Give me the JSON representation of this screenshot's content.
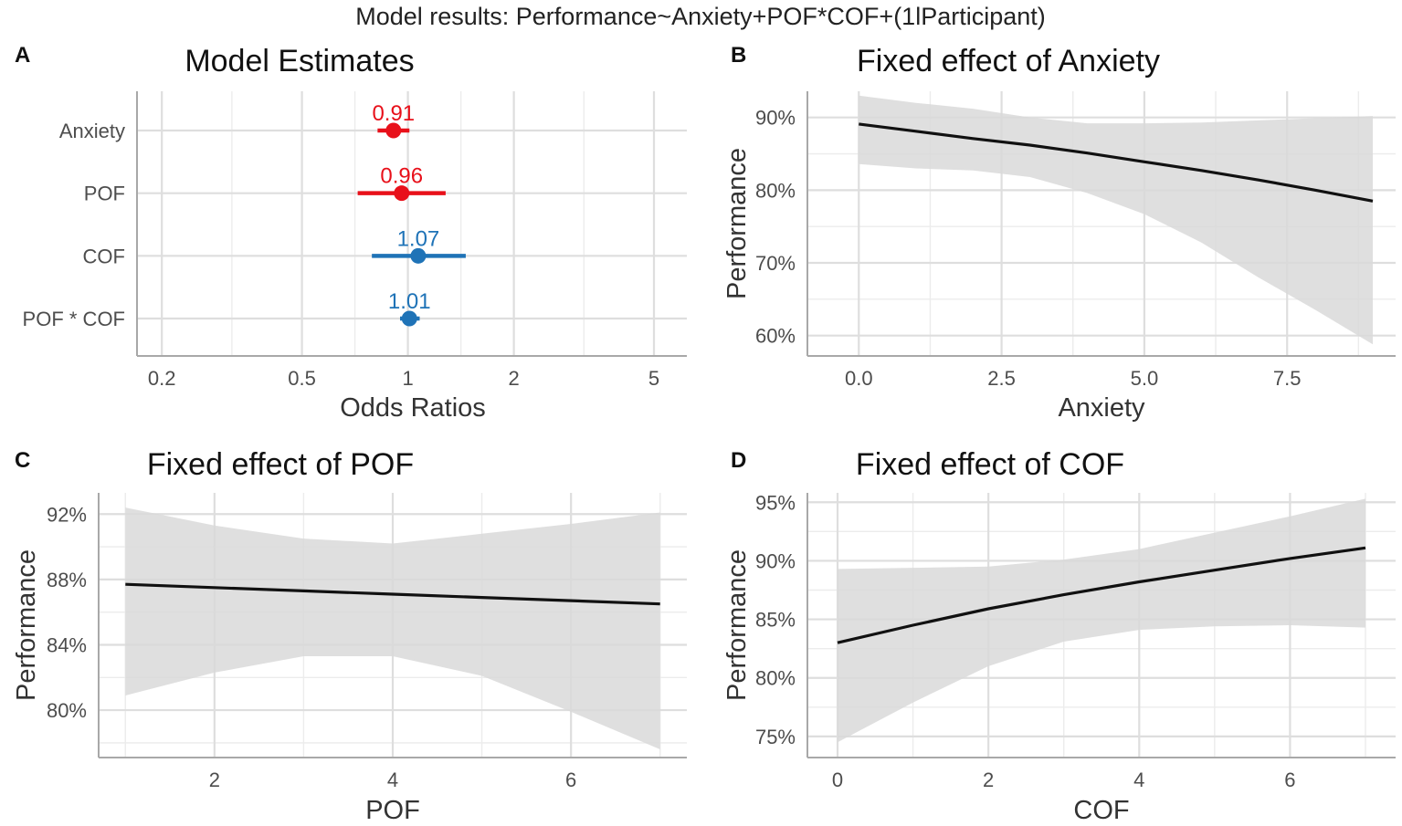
{
  "figure_title": "Model results: Performance~Anxiety+POF*COF+(1lParticipant)",
  "colors": {
    "negative": "#e8101a",
    "positive": "#1f73b7",
    "line": "#111111",
    "ribbon": "#d9d9d9"
  },
  "chart_data": [
    {
      "id": "A",
      "type": "forest",
      "panel_label": "A",
      "title": "Model Estimates",
      "xlabel": "Odds Ratios",
      "x_scale": "log",
      "xlim": [
        0.17,
        6.2
      ],
      "x_ticks": [
        0.2,
        0.5,
        1,
        2,
        5
      ],
      "x_tick_labels": [
        "0.2",
        "0.5",
        "1",
        "2",
        "5"
      ],
      "terms": [
        {
          "name": "Anxiety",
          "estimate": 0.91,
          "label": "0.91",
          "ci": [
            0.82,
            1.01
          ],
          "color": "negative"
        },
        {
          "name": "POF",
          "estimate": 0.96,
          "label": "0.96",
          "ci": [
            0.72,
            1.28
          ],
          "color": "negative"
        },
        {
          "name": "COF",
          "estimate": 1.07,
          "label": "1.07",
          "ci": [
            0.79,
            1.46
          ],
          "color": "positive"
        },
        {
          "name": "POF * COF",
          "estimate": 1.01,
          "label": "1.01",
          "ci": [
            0.95,
            1.08
          ],
          "color": "positive"
        }
      ]
    },
    {
      "id": "B",
      "type": "line",
      "panel_label": "B",
      "title": "Fixed effect of Anxiety",
      "xlabel": "Anxiety",
      "ylabel": "Performance",
      "xlim": [
        -0.9,
        9.4
      ],
      "ylim": [
        57.2,
        93.6
      ],
      "x_ticks": [
        0,
        2.5,
        5,
        7.5
      ],
      "x_tick_labels": [
        "0.0",
        "2.5",
        "5.0",
        "7.5"
      ],
      "y_ticks": [
        60,
        70,
        80,
        90
      ],
      "y_tick_labels": [
        "60%",
        "70%",
        "80%",
        "90%"
      ],
      "x": [
        0,
        1,
        2,
        3,
        4,
        5,
        6,
        7,
        8,
        9
      ],
      "y": [
        89.1,
        88.1,
        87.1,
        86.2,
        85.1,
        83.9,
        82.7,
        81.4,
        80.0,
        78.5
      ],
      "lower": [
        83.6,
        83.0,
        82.7,
        81.8,
        79.6,
        76.7,
        72.8,
        68.0,
        63.5,
        58.8
      ],
      "upper": [
        93.0,
        92.0,
        91.2,
        90.0,
        89.2,
        89.2,
        89.3,
        89.6,
        89.9,
        90.2
      ]
    },
    {
      "id": "C",
      "type": "line",
      "panel_label": "C",
      "title": "Fixed effect of POF",
      "xlabel": "POF",
      "ylabel": "Performance",
      "xlim": [
        0.7,
        7.3
      ],
      "ylim": [
        77.1,
        93.3
      ],
      "x_ticks": [
        2,
        4,
        6
      ],
      "x_tick_labels": [
        "2",
        "4",
        "6"
      ],
      "y_ticks": [
        80,
        84,
        88,
        92
      ],
      "y_tick_labels": [
        "80%",
        "84%",
        "88%",
        "92%"
      ],
      "x": [
        1,
        2,
        3,
        4,
        5,
        6,
        7
      ],
      "y": [
        87.7,
        87.5,
        87.3,
        87.1,
        86.9,
        86.7,
        86.5
      ],
      "lower": [
        80.9,
        82.3,
        83.3,
        83.3,
        82.1,
        79.9,
        77.6
      ],
      "upper": [
        92.4,
        91.3,
        90.5,
        90.2,
        90.8,
        91.4,
        92.1
      ]
    },
    {
      "id": "D",
      "type": "line",
      "panel_label": "D",
      "title": "Fixed effect of COF",
      "xlabel": "COF",
      "ylabel": "Performance",
      "xlim": [
        -0.4,
        7.4
      ],
      "ylim": [
        73.2,
        95.8
      ],
      "x_ticks": [
        0,
        2,
        4,
        6
      ],
      "x_tick_labels": [
        "0",
        "2",
        "4",
        "6"
      ],
      "y_ticks": [
        75,
        80,
        85,
        90,
        95
      ],
      "y_tick_labels": [
        "75%",
        "80%",
        "85%",
        "90%",
        "95%"
      ],
      "x": [
        0,
        1,
        2,
        3,
        4,
        5,
        6,
        7
      ],
      "y": [
        83.0,
        84.5,
        85.9,
        87.1,
        88.2,
        89.2,
        90.2,
        91.1
      ],
      "lower": [
        74.5,
        77.9,
        81.0,
        83.1,
        84.1,
        84.4,
        84.5,
        84.3
      ],
      "upper": [
        89.3,
        89.4,
        89.5,
        90.1,
        91.0,
        92.4,
        93.8,
        95.3
      ]
    }
  ]
}
